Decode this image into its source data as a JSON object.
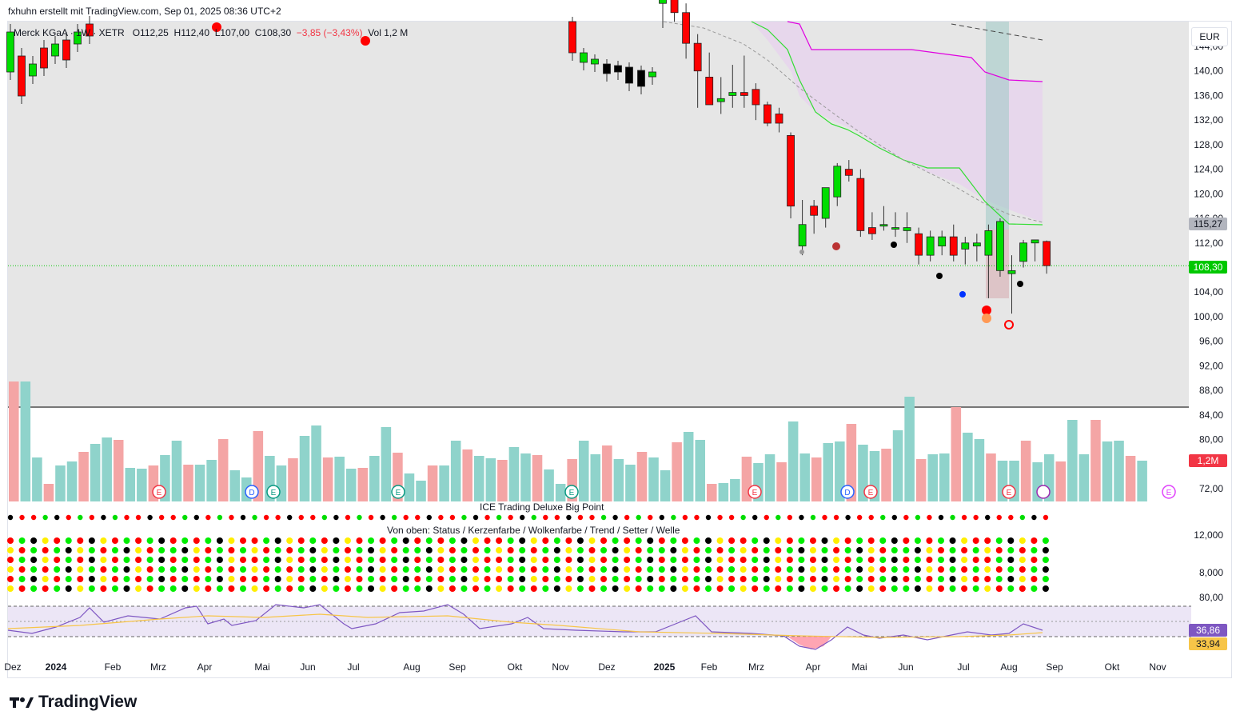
{
  "header": {
    "attribution": "fxhuhn erstellt mit TradingView.com, Sep 01, 2025 08:36 UTC+2"
  },
  "symbol": {
    "name": "Merck KGaA · 1W · XETR",
    "open": "O112,25",
    "high": "H112,40",
    "low": "L107,00",
    "close": "C108,30",
    "change": "−3,85 (−3,43%)",
    "volume": "Vol 1,2 M"
  },
  "currency_button": "EUR",
  "price_tags": {
    "last": "108,30",
    "cloud_line": "115,27",
    "volume": "1,2M",
    "osc_fast": "36,86",
    "osc_slow": "33,94"
  },
  "indicator_titles": {
    "big_point": "ICE Trading Deluxe Big Point",
    "legend": "Von oben: Status / Kerzenfarbe / Wolkenfarbe / Trend / Setter / Welle"
  },
  "brand": "TradingView",
  "colors": {
    "up": "#00dd00",
    "down": "#ff0000",
    "vol_up": "#8fd3cb",
    "vol_down": "#f4a5a5",
    "cloud": "#e6d4ec",
    "magenta": "#e000e0",
    "green_line": "#33dd33",
    "osc_line": "#7e57c2",
    "osc_signal": "#f7c548"
  },
  "chart_data": {
    "type": "candlestick",
    "title": "Merck KGaA · 1W · XETR",
    "y_ticks_price": [
      "72,00",
      "80,00",
      "84,00",
      "88,00",
      "92,00",
      "96,00",
      "100,00",
      "104,00",
      "108,00",
      "112,00",
      "116,00",
      "120,00",
      "124,00",
      "128,00",
      "132,00",
      "136,00",
      "140,00",
      "144,00"
    ],
    "y_ticks_osc": [
      "8,000",
      "12,000",
      "80,00"
    ],
    "x_ticks": [
      "Dez",
      "2024",
      "Feb",
      "Mrz",
      "Apr",
      "Mai",
      "Jun",
      "Jul",
      "Aug",
      "Sep",
      "Okt",
      "Nov",
      "Dez",
      "2025",
      "Feb",
      "Mrz",
      "Apr",
      "Mai",
      "Jun",
      "Jul",
      "Aug",
      "Sep",
      "Okt",
      "Nov"
    ],
    "candles_2025": [
      {
        "o": 151.0,
        "h": 154.0,
        "l": 147.0,
        "c": 153.0
      },
      {
        "o": 152.0,
        "h": 154.0,
        "l": 148.0,
        "c": 149.5
      },
      {
        "o": 149.5,
        "h": 151.0,
        "l": 142.0,
        "c": 144.5
      },
      {
        "o": 144.5,
        "h": 146.0,
        "l": 134.0,
        "c": 140.0
      },
      {
        "o": 139.0,
        "h": 143.0,
        "l": 135.0,
        "c": 134.5
      },
      {
        "o": 135.0,
        "h": 139.0,
        "l": 133.0,
        "c": 135.5
      },
      {
        "o": 136.0,
        "h": 141.0,
        "l": 134.0,
        "c": 136.5
      },
      {
        "o": 136.5,
        "h": 142.5,
        "l": 134.0,
        "c": 136.0
      },
      {
        "o": 137.0,
        "h": 138.0,
        "l": 132.0,
        "c": 134.5
      },
      {
        "o": 134.5,
        "h": 135.0,
        "l": 131.0,
        "c": 131.5
      },
      {
        "o": 133.0,
        "h": 134.0,
        "l": 130.0,
        "c": 131.5
      },
      {
        "o": 129.5,
        "h": 130.0,
        "l": 116.0,
        "c": 118.0
      },
      {
        "o": 111.5,
        "h": 119.0,
        "l": 110.0,
        "c": 115.0
      },
      {
        "o": 118.0,
        "h": 119.0,
        "l": 113.5,
        "c": 116.5
      },
      {
        "o": 116.0,
        "h": 121.0,
        "l": 114.5,
        "c": 121.0
      },
      {
        "o": 119.5,
        "h": 125.0,
        "l": 118.0,
        "c": 124.5
      },
      {
        "o": 124.0,
        "h": 125.5,
        "l": 122.0,
        "c": 123.0
      },
      {
        "o": 122.5,
        "h": 124.0,
        "l": 113.0,
        "c": 114.0
      },
      {
        "o": 114.5,
        "h": 117.0,
        "l": 112.5,
        "c": 113.5
      },
      {
        "o": 115.0,
        "h": 118.0,
        "l": 114.0,
        "c": 115.0
      },
      {
        "o": 114.5,
        "h": 117.0,
        "l": 113.0,
        "c": 114.5
      },
      {
        "o": 114.0,
        "h": 117.0,
        "l": 112.0,
        "c": 114.5
      },
      {
        "o": 113.5,
        "h": 114.5,
        "l": 108.5,
        "c": 110.0
      },
      {
        "o": 110.0,
        "h": 114.0,
        "l": 109.0,
        "c": 113.0
      },
      {
        "o": 111.5,
        "h": 114.0,
        "l": 110.0,
        "c": 113.0
      },
      {
        "o": 113.0,
        "h": 115.0,
        "l": 109.0,
        "c": 110.0
      },
      {
        "o": 111.0,
        "h": 113.0,
        "l": 108.5,
        "c": 112.0
      },
      {
        "o": 111.5,
        "h": 113.5,
        "l": 109.0,
        "c": 112.0
      },
      {
        "o": 110.0,
        "h": 115.0,
        "l": 103.0,
        "c": 114.0
      },
      {
        "o": 107.5,
        "h": 116.0,
        "l": 106.5,
        "c": 115.5
      },
      {
        "o": 107.0,
        "h": 110.0,
        "l": 100.5,
        "c": 107.5
      },
      {
        "o": 109.0,
        "h": 112.5,
        "l": 108.0,
        "c": 112.0
      },
      {
        "o": 112.0,
        "h": 112.5,
        "l": 109.0,
        "c": 112.5
      },
      {
        "o": 112.25,
        "h": 112.4,
        "l": 107.0,
        "c": 108.3
      }
    ],
    "last_price": 108.3,
    "cloud_upper_line": 115.27,
    "volume_last": "1,2M",
    "oscillator": {
      "fast": 36.86,
      "slow": 33.94
    }
  }
}
